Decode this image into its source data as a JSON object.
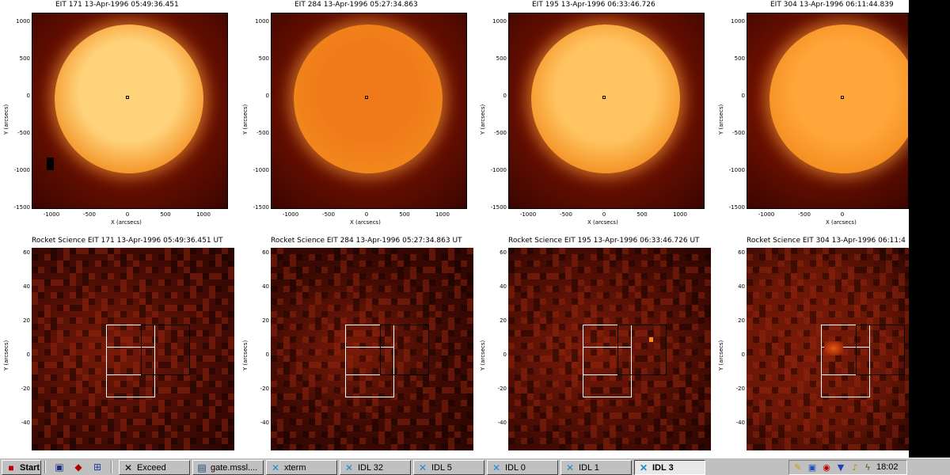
{
  "full_disk_panels": [
    {
      "title": "EIT 171  13-Apr-1996 05:49:36.451",
      "ylabel": "Y (arcsecs)",
      "xlabel": "X (arcsecs)",
      "yticks": [
        "1000",
        "500",
        "0",
        "-500",
        "-1000",
        "-1500"
      ],
      "xticks": [
        "-1000",
        "-500",
        "0",
        "500",
        "1000"
      ],
      "disk_color": "#ffd37a",
      "bg_color": "#a82400"
    },
    {
      "title": "EIT 284  13-Apr-1996 05:27:34.863",
      "ylabel": "Y (arcsecs)",
      "xlabel": "X (arcsecs)",
      "yticks": [
        "1000",
        "500",
        "0",
        "-500",
        "-1000",
        "-1500"
      ],
      "xticks": [
        "-1000",
        "-500",
        "0",
        "500",
        "1000"
      ],
      "disk_color": "#f07a1a",
      "bg_color": "#7a1600"
    },
    {
      "title": "EIT 195  13-Apr-1996 06:33:46.726",
      "ylabel": "Y (arcsecs)",
      "xlabel": "X (arcsecs)",
      "yticks": [
        "1000",
        "500",
        "0",
        "-500",
        "-1000",
        "-1500"
      ],
      "xticks": [
        "-1000",
        "-500",
        "0",
        "500",
        "1000"
      ],
      "disk_color": "#ffc460",
      "bg_color": "#b02c00"
    },
    {
      "title": "EIT 304  13-Apr-1996 06:11:44.839",
      "ylabel": "Y (arcsecs)",
      "xlabel": "X (arcsecs)",
      "yticks": [
        "1000",
        "500",
        "0",
        "-500",
        "-1000",
        "-1500"
      ],
      "xticks": [
        "-1000",
        "-500",
        "0"
      ],
      "disk_color": "#ffa53a",
      "bg_color": "#9a2000"
    }
  ],
  "zoom_panels": [
    {
      "title": "Rocket Science EIT 171  13-Apr-1996 05:49:36.451 UT",
      "ylabel": "Y (arcsecs)",
      "yticks": [
        "60",
        "40",
        "20",
        "0",
        "-20",
        "-40"
      ],
      "bg_color": "#4a0c04"
    },
    {
      "title": "Rocket Science EIT 284  13-Apr-1996 05:27:34.863 UT",
      "ylabel": "Y (arcsecs)",
      "yticks": [
        "60",
        "40",
        "20",
        "0",
        "-20",
        "-40"
      ],
      "bg_color": "#3e0a03"
    },
    {
      "title": "Rocket Science EIT 195  13-Apr-1996 06:33:46.726 UT",
      "ylabel": "Y (arcsecs)",
      "yticks": [
        "60",
        "40",
        "20",
        "0",
        "-20",
        "-40"
      ],
      "bg_color": "#500e04"
    },
    {
      "title": "Rocket Science EIT 304  13-Apr-1996 06:11:4",
      "ylabel": "Y (arcsecs)",
      "yticks": [
        "60",
        "40",
        "20",
        "0",
        "-20",
        "-40"
      ],
      "bg_color": "#6a1606"
    }
  ],
  "taskbar": {
    "start_label": "Start",
    "buttons": [
      {
        "label": "Exceed",
        "icon": "exceed-icon"
      },
      {
        "label": "gate.mssl....",
        "icon": "terminal-icon"
      },
      {
        "label": "xterm",
        "icon": "x-window-icon"
      },
      {
        "label": "IDL 32",
        "icon": "x-window-icon"
      },
      {
        "label": "IDL 5",
        "icon": "x-window-icon"
      },
      {
        "label": "IDL 0",
        "icon": "x-window-icon"
      },
      {
        "label": "IDL 1",
        "icon": "x-window-icon"
      },
      {
        "label": "IDL 3",
        "icon": "x-window-icon"
      }
    ],
    "clock": "18:02"
  }
}
